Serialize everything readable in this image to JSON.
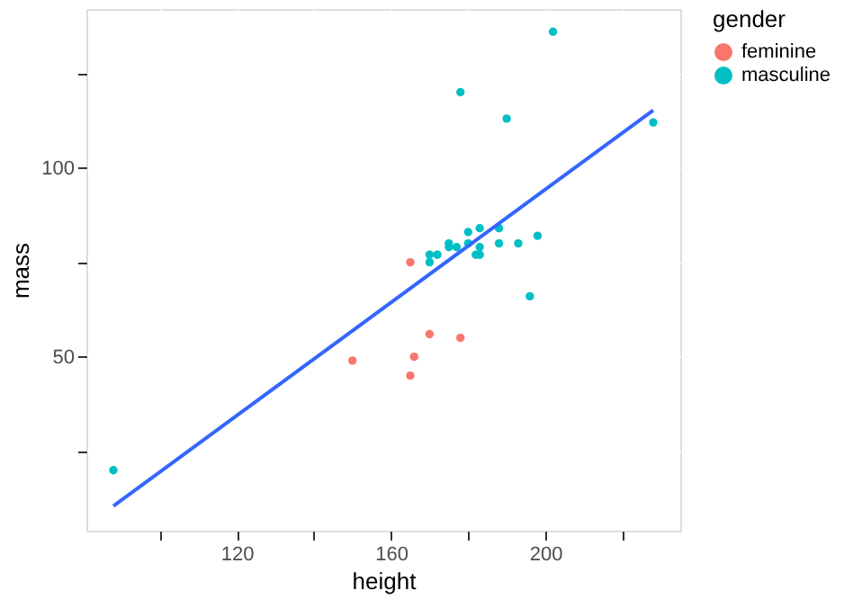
{
  "chart_data": {
    "type": "scatter",
    "xlabel": "height",
    "ylabel": "mass",
    "legend_title": "gender",
    "legend": "right",
    "grid": true,
    "marker": "circle",
    "xlim": [
      81,
      235
    ],
    "ylim": [
      4,
      142
    ],
    "xticks": [
      {
        "value": 100,
        "label": null
      },
      120,
      {
        "value": 140,
        "label": null
      },
      160,
      {
        "value": 180,
        "label": null
      },
      200,
      {
        "value": 220,
        "label": null
      }
    ],
    "yticks": [
      {
        "value": 25,
        "label": null
      },
      50,
      {
        "value": 75,
        "label": null
      },
      100,
      {
        "value": 125,
        "label": null
      }
    ],
    "series": [
      {
        "name": "feminine",
        "color": "#f8766d",
        "x": [
          165,
          170,
          178,
          166,
          165,
          150
        ],
        "values": [
          75,
          56,
          55,
          50,
          45,
          49
        ]
      },
      {
        "name": "masculine",
        "color": "#00bfc4",
        "x": [
          202,
          178,
          190,
          228,
          170,
          172,
          170,
          175,
          175,
          177,
          180,
          180,
          183,
          183,
          183,
          182,
          188,
          188,
          193,
          198,
          196,
          88
        ],
        "values": [
          136,
          120,
          113,
          112,
          77,
          77,
          75,
          80,
          79,
          79,
          83,
          80,
          84,
          79,
          77,
          77,
          84,
          80,
          80,
          82,
          66,
          20
        ]
      },
      {
        "type": "line",
        "marker": "none",
        "color": "#3366ff",
        "x": [
          88,
          228
        ],
        "values": [
          10.5,
          115.2
        ]
      }
    ]
  }
}
